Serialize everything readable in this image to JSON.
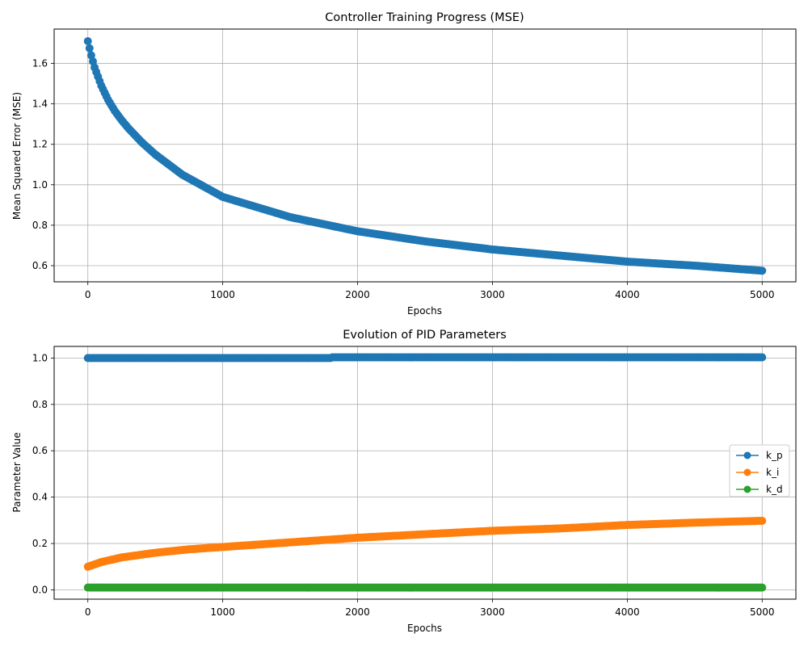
{
  "chart_data": [
    {
      "type": "scatter",
      "title": "Controller Training Progress (MSE)",
      "xlabel": "Epochs",
      "ylabel": "Mean Squared Error (MSE)",
      "xlim": [
        -250,
        5250
      ],
      "ylim": [
        0.52,
        1.77
      ],
      "xticks": [
        0,
        1000,
        2000,
        3000,
        4000,
        5000
      ],
      "yticks": [
        0.6,
        0.8,
        1.0,
        1.2,
        1.4,
        1.6
      ],
      "ytick_labels": [
        "0.6",
        "0.8",
        "1.0",
        "1.2",
        "1.4",
        "1.6"
      ],
      "grid": true,
      "series": [
        {
          "name": "",
          "color": "#1f77b4",
          "x": [
            0,
            25,
            50,
            100,
            150,
            200,
            250,
            300,
            400,
            500,
            700,
            1000,
            1500,
            2000,
            2500,
            3000,
            3500,
            4000,
            4500,
            5000
          ],
          "y": [
            1.71,
            1.64,
            1.58,
            1.49,
            1.42,
            1.365,
            1.32,
            1.28,
            1.21,
            1.15,
            1.05,
            0.94,
            0.84,
            0.77,
            0.72,
            0.68,
            0.65,
            0.62,
            0.6,
            0.575
          ]
        }
      ]
    },
    {
      "type": "scatter",
      "title": "Evolution of PID Parameters",
      "xlabel": "Epochs",
      "ylabel": "Parameter Value",
      "xlim": [
        -250,
        5250
      ],
      "ylim": [
        -0.04,
        1.05
      ],
      "xticks": [
        0,
        1000,
        2000,
        3000,
        4000,
        5000
      ],
      "yticks": [
        0.0,
        0.2,
        0.4,
        0.6,
        0.8,
        1.0
      ],
      "ytick_labels": [
        "0.0",
        "0.2",
        "0.4",
        "0.6",
        "0.8",
        "1.0"
      ],
      "grid": true,
      "legend": "center-right",
      "series": [
        {
          "name": "k_p",
          "color": "#1f77b4",
          "x": [
            0,
            1000,
            1800,
            1801,
            3000,
            4000,
            5000
          ],
          "y": [
            1.0,
            1.0,
            1.0,
            1.003,
            1.003,
            1.003,
            1.003
          ]
        },
        {
          "name": "k_i",
          "color": "#ff7f0e",
          "x": [
            0,
            100,
            250,
            500,
            750,
            1000,
            1500,
            2000,
            2500,
            3000,
            3500,
            4000,
            4500,
            5000
          ],
          "y": [
            0.1,
            0.12,
            0.14,
            0.16,
            0.175,
            0.185,
            0.205,
            0.225,
            0.24,
            0.255,
            0.265,
            0.28,
            0.29,
            0.298
          ]
        },
        {
          "name": "k_d",
          "color": "#2ca02c",
          "x": [
            0,
            1000,
            2000,
            3000,
            4000,
            5000
          ],
          "y": [
            0.01,
            0.01,
            0.01,
            0.01,
            0.01,
            0.01
          ]
        }
      ]
    }
  ]
}
